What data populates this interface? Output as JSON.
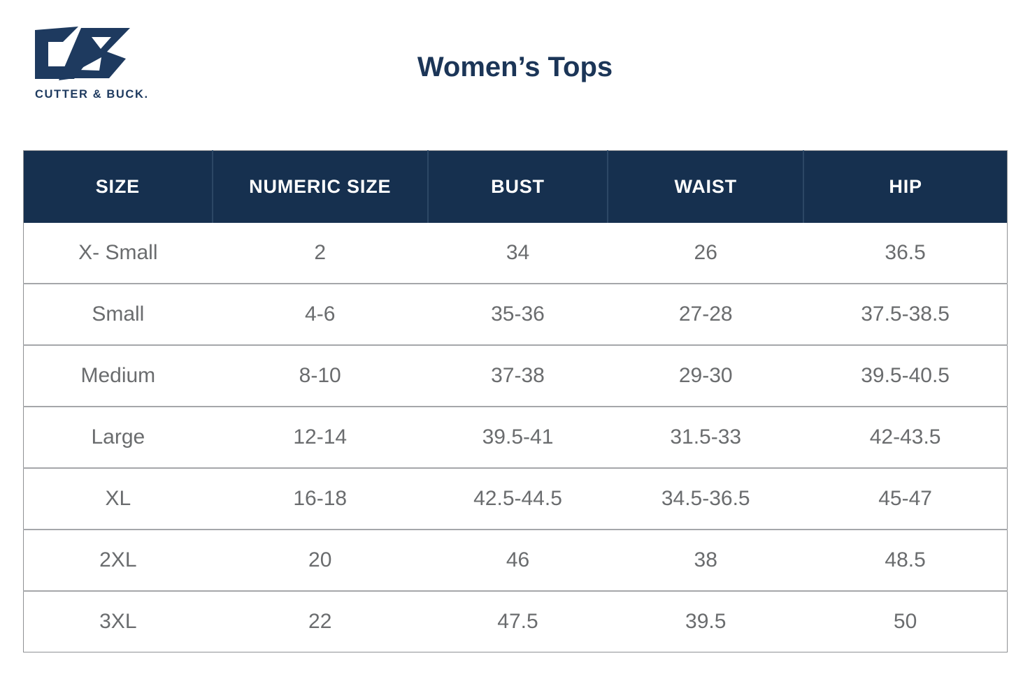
{
  "brand": {
    "wordmark": "CUTTER & BUCK.",
    "logo_icon": "cutter-and-buck-cb-monogram"
  },
  "title": "Women’s Tops",
  "colors": {
    "header_navy": "#16304f",
    "brand_navy": "#1e3a5f",
    "title_navy": "#1b3557",
    "body_text_gray": "#6a6c6e",
    "row_divider_gray": "#a5a7aa",
    "header_text": "#ffffff",
    "background": "#ffffff"
  },
  "chart_data": {
    "type": "table",
    "title": "Women’s Tops",
    "columns": [
      "SIZE",
      "NUMERIC SIZE",
      "BUST",
      "WAIST",
      "HIP"
    ],
    "rows": [
      [
        "X- Small",
        "2",
        "34",
        "26",
        "36.5"
      ],
      [
        "Small",
        "4-6",
        "35-36",
        "27-28",
        "37.5-38.5"
      ],
      [
        "Medium",
        "8-10",
        "37-38",
        "29-30",
        "39.5-40.5"
      ],
      [
        "Large",
        "12-14",
        "39.5-41",
        "31.5-33",
        "42-43.5"
      ],
      [
        "XL",
        "16-18",
        "42.5-44.5",
        "34.5-36.5",
        "45-47"
      ],
      [
        "2XL",
        "20",
        "46",
        "38",
        "48.5"
      ],
      [
        "3XL",
        "22",
        "47.5",
        "39.5",
        "50"
      ]
    ],
    "layout": {
      "grid": "horizontal row dividers only",
      "header_style": "solid navy band with white uppercase labels",
      "column_width_pct": [
        19.2,
        21.9,
        18.3,
        19.9,
        20.7
      ]
    }
  }
}
